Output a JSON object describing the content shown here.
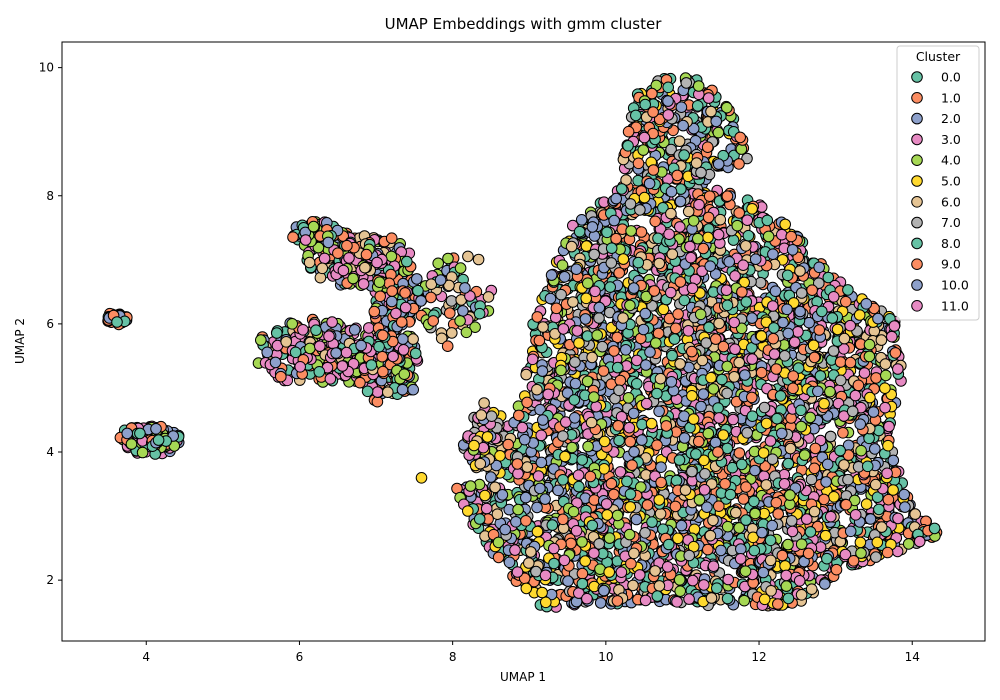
{
  "chart_data": {
    "type": "scatter",
    "title": "UMAP Embeddings with gmm cluster",
    "xlabel": "UMAP 1",
    "ylabel": "UMAP 2",
    "xlim": [
      2.9,
      14.95
    ],
    "ylim": [
      1.05,
      10.4
    ],
    "x_ticks": [
      4,
      6,
      8,
      10,
      12,
      14
    ],
    "y_ticks": [
      2,
      4,
      6,
      8,
      10
    ],
    "x_tick_labels": [
      "4",
      "6",
      "8",
      "10",
      "12",
      "14"
    ],
    "y_tick_labels": [
      "2",
      "4",
      "6",
      "8",
      "10"
    ],
    "grid": false,
    "legend_position": "top-right",
    "legend_title": "Cluster",
    "clusters": [
      {
        "name": "0.0",
        "color": "#66c2a5"
      },
      {
        "name": "1.0",
        "color": "#fc8d62"
      },
      {
        "name": "2.0",
        "color": "#8da0cb"
      },
      {
        "name": "3.0",
        "color": "#e78ac3"
      },
      {
        "name": "4.0",
        "color": "#a6d854"
      },
      {
        "name": "5.0",
        "color": "#ffd92f"
      },
      {
        "name": "6.0",
        "color": "#e5c494"
      },
      {
        "name": "7.0",
        "color": "#b3b3b3"
      },
      {
        "name": "8.0",
        "color": "#66c2a5"
      },
      {
        "name": "9.0",
        "color": "#fc8d62"
      },
      {
        "name": "10.0",
        "color": "#8da0cb"
      },
      {
        "name": "11.0",
        "color": "#e78ac3"
      }
    ],
    "regions": [
      {
        "kind": "blob",
        "center": [
          3.6,
          6.08
        ],
        "radius": [
          0.16,
          0.09
        ],
        "count": 45,
        "clusters": [
          1,
          9,
          2,
          0
        ]
      },
      {
        "kind": "blob",
        "center": [
          4.05,
          4.2
        ],
        "radius": [
          0.38,
          0.24
        ],
        "count": 130,
        "clusters": [
          0,
          3,
          2,
          4,
          1,
          11
        ]
      },
      {
        "kind": "blob",
        "center": [
          6.25,
          7.4
        ],
        "radius": [
          0.35,
          0.2
        ],
        "count": 120,
        "clusters": [
          1,
          3,
          2,
          0,
          4
        ]
      },
      {
        "kind": "blob",
        "center": [
          6.75,
          7.0
        ],
        "radius": [
          0.7,
          0.42
        ],
        "count": 260,
        "clusters": [
          3,
          1,
          4,
          0,
          2,
          6,
          11
        ]
      },
      {
        "kind": "blob",
        "center": [
          6.3,
          5.55
        ],
        "radius": [
          0.85,
          0.5
        ],
        "count": 300,
        "clusters": [
          3,
          2,
          4,
          1,
          0,
          6,
          11
        ]
      },
      {
        "kind": "blob",
        "center": [
          7.15,
          5.4
        ],
        "radius": [
          0.45,
          0.65
        ],
        "count": 180,
        "clusters": [
          2,
          3,
          4,
          0,
          1,
          6
        ]
      },
      {
        "kind": "blob",
        "center": [
          7.3,
          6.4
        ],
        "radius": [
          0.4,
          0.45
        ],
        "count": 110,
        "clusters": [
          4,
          0,
          2,
          3,
          1
        ]
      },
      {
        "kind": "blob",
        "center": [
          8.05,
          6.4
        ],
        "radius": [
          0.45,
          0.75
        ],
        "count": 70,
        "clusters": [
          2,
          4,
          0,
          3,
          1,
          6,
          7
        ]
      },
      {
        "kind": "blob",
        "center": [
          8.45,
          4.2
        ],
        "radius": [
          0.3,
          0.55
        ],
        "count": 90,
        "clusters": [
          2,
          5,
          6,
          4,
          7,
          3
        ]
      },
      {
        "kind": "hull",
        "polygon": [
          [
            8.45,
            3.55
          ],
          [
            8.9,
            4.85
          ],
          [
            9.05,
            6.1
          ],
          [
            9.6,
            7.65
          ],
          [
            10.15,
            8.05
          ],
          [
            10.35,
            9.55
          ],
          [
            10.75,
            9.85
          ],
          [
            11.2,
            9.85
          ],
          [
            11.7,
            9.3
          ],
          [
            11.85,
            8.55
          ],
          [
            11.25,
            8.2
          ],
          [
            12.15,
            7.8
          ],
          [
            12.75,
            7.05
          ],
          [
            13.2,
            6.5
          ],
          [
            13.8,
            6.05
          ],
          [
            13.9,
            5.3
          ],
          [
            13.7,
            4.3
          ],
          [
            13.85,
            3.6
          ],
          [
            14.05,
            3.1
          ],
          [
            14.4,
            2.75
          ],
          [
            13.95,
            2.5
          ],
          [
            13.05,
            2.15
          ],
          [
            12.6,
            1.6
          ],
          [
            11.4,
            1.6
          ],
          [
            10.4,
            1.65
          ],
          [
            9.2,
            1.55
          ],
          [
            8.8,
            2.0
          ],
          [
            8.25,
            2.85
          ],
          [
            8.0,
            3.45
          ]
        ],
        "count": 4400,
        "clusters": [
          0,
          1,
          2,
          3,
          4,
          5,
          6,
          7,
          8,
          9,
          10,
          11
        ]
      },
      {
        "kind": "blob",
        "center": [
          14.15,
          2.75
        ],
        "radius": [
          0.2,
          0.12
        ],
        "count": 35,
        "clusters": [
          2,
          0,
          4,
          1
        ]
      },
      {
        "kind": "blob",
        "center": [
          7.6,
          3.6
        ],
        "radius": [
          0.01,
          0.01
        ],
        "count": 1,
        "clusters": [
          5
        ]
      }
    ]
  }
}
